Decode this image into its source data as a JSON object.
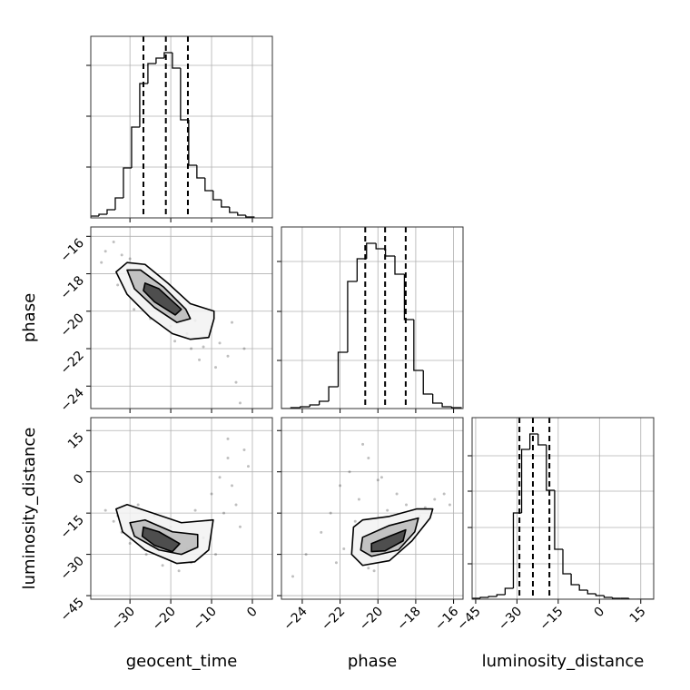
{
  "chart_data": [
    {
      "type": "histogram",
      "bins": [
        -39.6,
        -37.6,
        -35.6,
        -33.6,
        -31.6,
        -29.6,
        -27.6,
        -25.6,
        -23.6,
        -21.6,
        -19.6,
        -17.6,
        -15.6,
        -13.6,
        -11.6,
        -9.6,
        -7.6,
        -5.6,
        -3.6,
        -1.6,
        0.4
      ],
      "values": [
        2,
        4,
        9,
        22,
        55,
        100,
        148,
        170,
        176,
        182,
        165,
        108,
        58,
        44,
        30,
        20,
        12,
        6,
        3,
        1
      ],
      "xlim": [
        -39.6,
        4.9
      ],
      "xticks": [
        -30,
        -20,
        -10,
        0
      ],
      "ylim": [
        0,
        200
      ],
      "yticks": [
        56,
        112,
        168
      ],
      "quantiles": [
        -26.7,
        -21.2,
        -15.8
      ],
      "color": "#000000",
      "grid": true
    },
    {
      "type": "scatter",
      "xlim": [
        -39.6,
        4.9
      ],
      "xticks": [
        -30,
        -20,
        -10,
        0
      ],
      "ylim": [
        -25.2,
        -15.5
      ],
      "yticks": [
        {
          "value": -16,
          "label": "−16"
        },
        {
          "value": -18,
          "label": "−18"
        },
        {
          "value": -20,
          "label": "−20"
        },
        {
          "value": -22,
          "label": "−22"
        },
        {
          "value": -24,
          "label": "−24"
        }
      ],
      "ylabel": "phase",
      "points": {
        "x": [
          -36,
          -34,
          -32,
          -30,
          -28,
          -26,
          -24,
          -22,
          -20,
          -18,
          -16,
          -14,
          -12,
          -10,
          -8,
          -6,
          -4,
          -2,
          -37,
          -29,
          -19,
          -13,
          -9,
          -5,
          -33,
          -25,
          -15,
          -3
        ],
        "y": [
          -16.8,
          -16.3,
          -17.0,
          -17.2,
          -18.8,
          -17.8,
          -19.5,
          -18.9,
          -20.8,
          -19.4,
          -21.2,
          -20.5,
          -21.9,
          -20.8,
          -21.7,
          -22.4,
          -23.8,
          -22.0,
          -17.4,
          -19.9,
          -21.6,
          -22.6,
          -23.0,
          -20.6,
          -18.6,
          -20.4,
          -22.0,
          -24.9
        ]
      },
      "contours": [
        {
          "x": [
            -33.4,
            -30.7,
            -26.3,
            -20.7,
            -15.2,
            -9.4,
            -9.4,
            -10.7,
            -15.2,
            -19.6,
            -25.2,
            -30.7
          ],
          "y": [
            -17.9,
            -17.4,
            -17.5,
            -18.5,
            -19.6,
            -20.0,
            -20.4,
            -21.4,
            -21.5,
            -21.2,
            -20.3,
            -19.1
          ]
        },
        {
          "x": [
            -30.7,
            -27.4,
            -21.8,
            -16.3,
            -15.2,
            -18.5,
            -24.0,
            -28.9
          ],
          "y": [
            -17.8,
            -17.8,
            -18.7,
            -19.9,
            -20.4,
            -20.6,
            -19.8,
            -18.8
          ]
        },
        {
          "x": [
            -26.3,
            -22.9,
            -17.4,
            -18.9,
            -24.0,
            -26.7
          ],
          "y": [
            -18.5,
            -18.8,
            -19.9,
            -20.2,
            -19.5,
            -18.9
          ]
        }
      ],
      "grid": true
    },
    {
      "type": "histogram",
      "bins": [
        -25.1,
        -24.6,
        -24.1,
        -23.6,
        -23.1,
        -22.6,
        -22.1,
        -21.6,
        -21.1,
        -20.6,
        -20.1,
        -19.6,
        -19.1,
        -18.6,
        -18.1,
        -17.6,
        -17.1,
        -16.6,
        -16.1,
        -15.6
      ],
      "values": [
        0,
        1,
        2,
        4,
        8,
        24,
        62,
        140,
        165,
        182,
        176,
        168,
        148,
        98,
        42,
        16,
        6,
        2,
        1
      ],
      "xlim": [
        -25.1,
        -15.5
      ],
      "xticks": [
        -24,
        -22,
        -20,
        -18,
        -16
      ],
      "ylim": [
        0,
        200
      ],
      "yticks": [
        53,
        107,
        162
      ],
      "quantiles": [
        -20.67,
        -19.62,
        -18.53
      ],
      "color": "#000000",
      "grid": true
    },
    {
      "type": "scatter",
      "xlim": [
        -39.6,
        4.9
      ],
      "xticks": [
        {
          "value": -30,
          "label": "−30"
        },
        {
          "value": -20,
          "label": "−20"
        },
        {
          "value": -10,
          "label": "−10"
        },
        0
      ],
      "ylim": [
        -46.3,
        19.7
      ],
      "yticks": [
        15,
        0,
        {
          "value": -15,
          "label": "−15"
        },
        {
          "value": -30,
          "label": "−30"
        },
        {
          "value": -45,
          "label": "−45"
        }
      ],
      "xlabel": "geocent_time",
      "ylabel": "luminosity_distance",
      "points": {
        "x": [
          -36,
          -34,
          -32,
          -30,
          -28,
          -26,
          -24,
          -22,
          -20,
          -18,
          -16,
          -14,
          -12,
          -10,
          -8,
          -6,
          -4,
          -2,
          -3,
          -9,
          -7,
          -5,
          -15,
          -25,
          -33,
          -11,
          -1,
          -6
        ],
        "y": [
          -14,
          -18,
          -22,
          -26,
          -12,
          -30,
          -16,
          -34,
          -20,
          -36,
          -28,
          -14,
          -24,
          -8,
          -2,
          5,
          -12,
          8,
          -20,
          -30,
          -15,
          -5,
          -33,
          -27,
          -16,
          -18,
          2,
          12
        ]
      },
      "contours": [
        {
          "x": [
            -33.4,
            -30.7,
            -24.0,
            -17.4,
            -9.6,
            -10.7,
            -14.1,
            -18.5,
            -26.3,
            -31.8
          ],
          "y": [
            -13.5,
            -11.9,
            -15.2,
            -18.5,
            -17.5,
            -28.4,
            -32.7,
            -33.3,
            -28.4,
            -21.8
          ]
        },
        {
          "x": [
            -30.0,
            -26.3,
            -19.6,
            -13.4,
            -13.4,
            -17.4,
            -22.9,
            -28.9
          ],
          "y": [
            -18.5,
            -17.5,
            -21.8,
            -22.8,
            -27.4,
            -30.0,
            -28.4,
            -23.4
          ]
        },
        {
          "x": [
            -26.7,
            -22.9,
            -17.8,
            -19.6,
            -24.0,
            -27.0
          ],
          "y": [
            -20.1,
            -21.8,
            -26.1,
            -29.0,
            -26.7,
            -23.4
          ]
        }
      ],
      "grid": true
    },
    {
      "type": "scatter",
      "xlim": [
        -25.1,
        -15.5
      ],
      "xticks": [
        {
          "value": -24,
          "label": "−24"
        },
        {
          "value": -22,
          "label": "−22"
        },
        {
          "value": -20,
          "label": "−20"
        },
        {
          "value": -18,
          "label": "−18"
        },
        {
          "value": -16,
          "label": "−16"
        }
      ],
      "ylim": [
        -46.3,
        19.7
      ],
      "yticks": [
        15,
        0,
        -15,
        -30,
        -45
      ],
      "xlabel": "phase",
      "points": {
        "x": [
          -22,
          -21.5,
          -21,
          -20.5,
          -20,
          -22.5,
          -23,
          -21.8,
          -20.5,
          -19.5,
          -19,
          -18.5,
          -18,
          -17.5,
          -17,
          -16.5,
          -16.2,
          -23.8,
          -24.5,
          -22.2,
          -19.8,
          -20.8,
          -21.2,
          -18.8,
          -20.2,
          -17.8
        ],
        "y": [
          -5,
          0,
          -10,
          5,
          -3,
          -15,
          -22,
          -28,
          -35,
          -14,
          -8,
          -12,
          -19,
          -13,
          -10,
          -8,
          -12,
          -30,
          -38,
          -33,
          -2,
          10,
          -18,
          -25,
          -36,
          -16
        ]
      },
      "contours": [
        {
          "x": [
            -21.29,
            -20.81,
            -19.39,
            -17.96,
            -17.1,
            -17.24,
            -18.2,
            -19.39,
            -20.81,
            -21.39
          ],
          "y": [
            -20.1,
            -17.5,
            -16.2,
            -13.5,
            -13.5,
            -16.8,
            -25.1,
            -32.3,
            -34.0,
            -30.0
          ]
        },
        {
          "x": [
            -20.81,
            -19.39,
            -17.86,
            -18.05,
            -18.91,
            -20.34,
            -20.91
          ],
          "y": [
            -23.8,
            -19.5,
            -16.8,
            -21.8,
            -28.4,
            -30.7,
            -28.4
          ]
        },
        {
          "x": [
            -20.34,
            -19.39,
            -18.53,
            -18.67,
            -19.62,
            -20.34
          ],
          "y": [
            -26.1,
            -23.4,
            -21.1,
            -25.1,
            -28.7,
            -29.0
          ]
        }
      ],
      "grid": true
    },
    {
      "type": "histogram",
      "bins": [
        -46.3,
        -43.3,
        -40.3,
        -37.3,
        -34.3,
        -31.3,
        -28.3,
        -25.3,
        -22.3,
        -19.3,
        -16.3,
        -13.3,
        -10.3,
        -7.3,
        -4.3,
        -1.3,
        1.7,
        4.7,
        7.7,
        10.7,
        13.7,
        16.7,
        19.7
      ],
      "values": [
        1,
        2,
        3,
        5,
        12,
        95,
        165,
        182,
        170,
        120,
        55,
        28,
        16,
        10,
        6,
        4,
        2,
        1,
        1,
        0,
        0,
        0
      ],
      "xlim": [
        -46.3,
        19.7
      ],
      "xticks": [
        {
          "value": -45,
          "label": "−45"
        },
        {
          "value": -30,
          "label": "−30"
        },
        {
          "value": -15,
          "label": "−15"
        },
        0,
        15
      ],
      "ylim": [
        0,
        200
      ],
      "yticks": [
        39,
        79,
        119,
        158
      ],
      "xlabel": "luminosity_distance",
      "quantiles": [
        -29.1,
        -24.2,
        -18.2
      ],
      "color": "#000000",
      "grid": true
    }
  ]
}
